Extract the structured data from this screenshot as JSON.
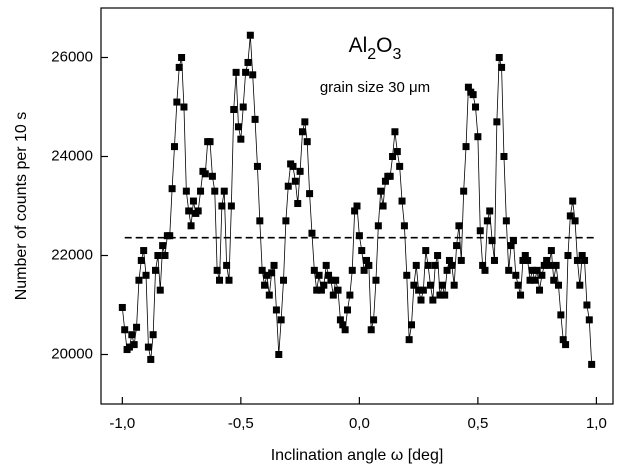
{
  "chart_data": {
    "type": "line",
    "title": "Al2O3",
    "annotation": "grain size 30 μm",
    "xlabel": "Inclination angle ω [deg]",
    "ylabel": "Number of counts per 10 s",
    "color": "#000000",
    "markers": true,
    "reference_line": 22360,
    "xlim": [
      -1.09,
      1.07
    ],
    "ylim": [
      19000,
      27000
    ],
    "xticks": [
      {
        "value": -1,
        "label": "-1,0"
      },
      {
        "value": -0.5,
        "label": "-0,5"
      },
      {
        "value": 0,
        "label": "0,0"
      },
      {
        "value": 0.5,
        "label": "0,5"
      },
      {
        "value": 1,
        "label": "1,0"
      }
    ],
    "yticks": [
      20000,
      22000,
      24000,
      26000
    ],
    "x": [
      -1.0,
      -0.99,
      -0.98,
      -0.97,
      -0.96,
      -0.95,
      -0.94,
      -0.93,
      -0.92,
      -0.91,
      -0.9,
      -0.89,
      -0.88,
      -0.87,
      -0.86,
      -0.85,
      -0.84,
      -0.83,
      -0.82,
      -0.81,
      -0.8,
      -0.79,
      -0.78,
      -0.77,
      -0.76,
      -0.75,
      -0.74,
      -0.73,
      -0.72,
      -0.71,
      -0.7,
      -0.69,
      -0.68,
      -0.67,
      -0.66,
      -0.65,
      -0.64,
      -0.63,
      -0.62,
      -0.61,
      -0.6,
      -0.59,
      -0.58,
      -0.57,
      -0.56,
      -0.55,
      -0.54,
      -0.53,
      -0.52,
      -0.51,
      -0.5,
      -0.49,
      -0.48,
      -0.47,
      -0.46,
      -0.45,
      -0.44,
      -0.43,
      -0.42,
      -0.41,
      -0.4,
      -0.39,
      -0.38,
      -0.37,
      -0.36,
      -0.35,
      -0.34,
      -0.33,
      -0.32,
      -0.31,
      -0.3,
      -0.29,
      -0.28,
      -0.27,
      -0.26,
      -0.25,
      -0.24,
      -0.23,
      -0.22,
      -0.21,
      -0.2,
      -0.19,
      -0.18,
      -0.17,
      -0.16,
      -0.15,
      -0.14,
      -0.13,
      -0.12,
      -0.11,
      -0.1,
      -0.09,
      -0.08,
      -0.07,
      -0.06,
      -0.05,
      -0.04,
      -0.03,
      -0.02,
      -0.01,
      0.0,
      0.01,
      0.02,
      0.03,
      0.04,
      0.05,
      0.06,
      0.07,
      0.08,
      0.09,
      0.1,
      0.11,
      0.12,
      0.13,
      0.14,
      0.15,
      0.16,
      0.17,
      0.18,
      0.19,
      0.2,
      0.21,
      0.22,
      0.23,
      0.24,
      0.25,
      0.26,
      0.27,
      0.28,
      0.29,
      0.3,
      0.31,
      0.32,
      0.33,
      0.34,
      0.35,
      0.36,
      0.37,
      0.38,
      0.39,
      0.4,
      0.41,
      0.42,
      0.43,
      0.44,
      0.45,
      0.46,
      0.47,
      0.48,
      0.49,
      0.5,
      0.51,
      0.52,
      0.53,
      0.54,
      0.55,
      0.56,
      0.57,
      0.58,
      0.59,
      0.6,
      0.61,
      0.62,
      0.63,
      0.64,
      0.65,
      0.66,
      0.67,
      0.68,
      0.69,
      0.7,
      0.71,
      0.72,
      0.73,
      0.74,
      0.75,
      0.76,
      0.77,
      0.78,
      0.79,
      0.8,
      0.81,
      0.82,
      0.83,
      0.84,
      0.85,
      0.86,
      0.87,
      0.88,
      0.89,
      0.9,
      0.91,
      0.92,
      0.93,
      0.94,
      0.95,
      0.96,
      0.97,
      0.98
    ],
    "values": [
      20950,
      20500,
      20100,
      20150,
      20400,
      20200,
      20550,
      21500,
      21900,
      22100,
      21600,
      20150,
      19900,
      20400,
      21700,
      22000,
      21300,
      22200,
      22000,
      22400,
      22400,
      23350,
      24200,
      25100,
      25800,
      26000,
      25000,
      23300,
      22900,
      22600,
      23100,
      22850,
      22900,
      23300,
      23700,
      23650,
      24300,
      24300,
      23600,
      23300,
      21700,
      21500,
      23000,
      23300,
      21800,
      21500,
      23000,
      24950,
      25700,
      24600,
      24350,
      25000,
      25700,
      25900,
      26450,
      25650,
      24750,
      23800,
      22700,
      21700,
      21400,
      21600,
      21200,
      21650,
      21800,
      20900,
      20000,
      20700,
      21500,
      22700,
      23400,
      23850,
      23800,
      23500,
      23050,
      23700,
      24500,
      24700,
      24300,
      23250,
      22450,
      21700,
      21300,
      21600,
      21300,
      21400,
      21800,
      21600,
      21500,
      21200,
      21500,
      21300,
      20700,
      20600,
      20500,
      20900,
      21200,
      21700,
      22900,
      23000,
      22400,
      22100,
      21700,
      21900,
      21800,
      20500,
      20700,
      21500,
      22600,
      23300,
      23000,
      23500,
      23600,
      23600,
      24000,
      24500,
      24100,
      23800,
      23100,
      22600,
      21600,
      20300,
      20600,
      21400,
      21800,
      21300,
      21100,
      21300,
      22100,
      21800,
      21400,
      21100,
      21800,
      22000,
      21200,
      21400,
      21200,
      21700,
      21900,
      21800,
      21400,
      22200,
      22600,
      21900,
      23300,
      24200,
      25400,
      25300,
      25250,
      25000,
      24400,
      22500,
      21800,
      21700,
      22700,
      22900,
      22300,
      21900,
      24700,
      26000,
      25800,
      24000,
      22700,
      21700,
      22200,
      22300,
      21600,
      21400,
      21200,
      21900,
      22000,
      21900,
      21500,
      21700,
      21500,
      21700,
      21300,
      21600,
      21800,
      21900,
      21800,
      22100,
      21500,
      21800,
      21400,
      20800,
      20300,
      20200,
      22000,
      22800,
      23100,
      22700,
      21900,
      21400,
      22000,
      21900,
      21000,
      20700,
      19800
    ]
  }
}
